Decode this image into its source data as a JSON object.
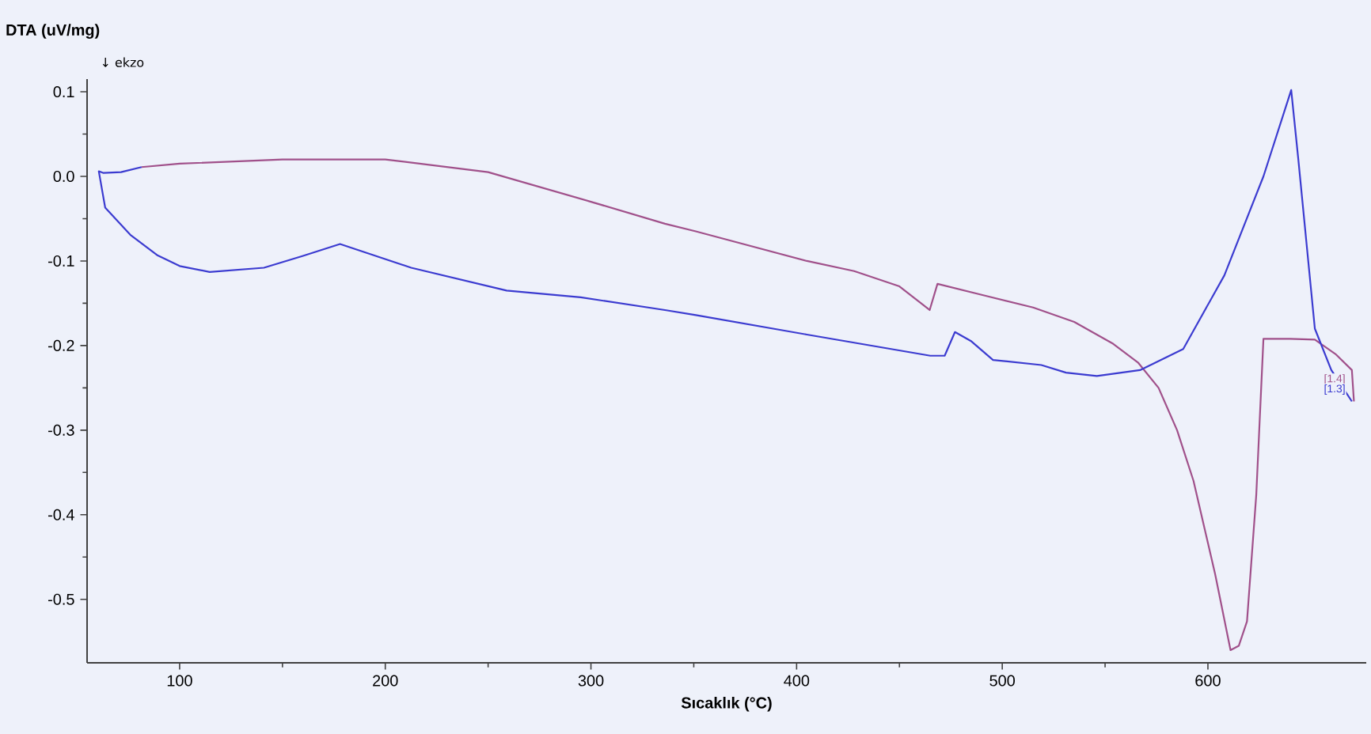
{
  "chart_data": {
    "type": "line",
    "xlabel": "Sıcaklık (°C)",
    "ylabel": "DTA (uV/mg)",
    "xlim": [
      55,
      677
    ],
    "ylim": [
      -0.575,
      0.115
    ],
    "xticks": [
      100,
      200,
      300,
      400,
      500,
      600
    ],
    "yticks": [
      {
        "value": 0.1,
        "label": "0.1"
      },
      {
        "value": 0.0,
        "label": "0.0"
      },
      {
        "value": -0.1,
        "label": "-0.1"
      },
      {
        "value": -0.2,
        "label": "-0.2"
      },
      {
        "value": -0.3,
        "label": "-0.3"
      },
      {
        "value": -0.4,
        "label": "-0.4"
      },
      {
        "value": -0.5,
        "label": "-0.5"
      }
    ],
    "grid": false,
    "marker": "none",
    "line_style": "solid",
    "series": [
      {
        "color": "#a0508a",
        "x": [
          81.5,
          100,
          150,
          200,
          250,
          300,
          336,
          351,
          405,
          428,
          450,
          464.7,
          468.5,
          490,
          515,
          535,
          554,
          566,
          576,
          585,
          593,
          603.5,
          611,
          615,
          619,
          623.5,
          627,
          640,
          652,
          662,
          670,
          671
        ],
        "values": [
          0.011,
          0.015,
          0.02,
          0.02,
          0.005,
          -0.03,
          -0.056,
          -0.065,
          -0.1,
          -0.112,
          -0.13,
          -0.158,
          -0.127,
          -0.14,
          -0.155,
          -0.172,
          -0.198,
          -0.22,
          -0.25,
          -0.3,
          -0.36,
          -0.47,
          -0.56,
          -0.555,
          -0.526,
          -0.377,
          -0.192,
          -0.192,
          -0.193,
          -0.21,
          -0.229,
          -0.266
        ]
      },
      {
        "color": "#3b3bd0",
        "x": [
          81.5,
          71.5,
          63,
          60.7,
          63.8,
          76,
          89,
          100,
          114.6,
          141,
          160,
          178,
          212.6,
          259,
          295,
          336,
          351,
          405,
          465,
          472,
          477,
          485,
          495.5,
          519,
          531,
          546,
          567,
          588,
          608,
          627,
          640.5,
          644,
          652,
          660,
          670
        ],
        "values": [
          0.011,
          0.005,
          0.004,
          0.006,
          -0.037,
          -0.069,
          -0.093,
          -0.106,
          -0.113,
          -0.108,
          -0.094,
          -0.08,
          -0.108,
          -0.135,
          -0.143,
          -0.158,
          -0.164,
          -0.187,
          -0.212,
          -0.212,
          -0.184,
          -0.195,
          -0.217,
          -0.223,
          -0.232,
          -0.236,
          -0.229,
          -0.204,
          -0.117,
          0.0,
          0.102,
          0.019,
          -0.18,
          -0.229,
          -0.266
        ]
      }
    ],
    "annotations": [
      {
        "text": "[1.4]",
        "x": 672,
        "y": -0.24
      },
      {
        "text": "[1.3]",
        "x": 672,
        "y": -0.252
      },
      "↓ ekzo"
    ]
  }
}
